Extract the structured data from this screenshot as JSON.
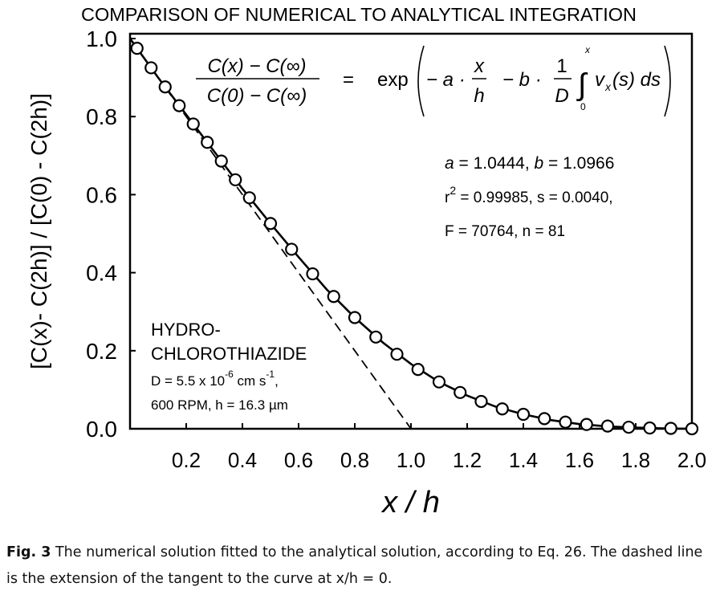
{
  "chart_data": {
    "type": "scatter",
    "title": "COMPARISON OF NUMERICAL TO ANALYTICAL INTEGRATION",
    "xlabel": "x / h",
    "ylabel": "[C(x)- C(2h)] / [C(0) - C(2h)]",
    "xlim": [
      0.0,
      2.0
    ],
    "ylim": [
      0.0,
      1.0
    ],
    "xticks": [
      "0.2",
      "0.4",
      "0.6",
      "0.8",
      "1.0",
      "1.2",
      "1.4",
      "1.6",
      "1.8",
      "2.0"
    ],
    "yticks": [
      "0.0",
      "0.2",
      "0.4",
      "0.6",
      "0.8",
      "1.0"
    ],
    "grid": false,
    "series": [
      {
        "style": "open-circles",
        "x": [
          0.025,
          0.075,
          0.125,
          0.175,
          0.225,
          0.275,
          0.325,
          0.375,
          0.425,
          0.5,
          0.575,
          0.65,
          0.725,
          0.8,
          0.875,
          0.95,
          1.025,
          1.1,
          1.175,
          1.25,
          1.325,
          1.4,
          1.475,
          1.55,
          1.625,
          1.7,
          1.775,
          1.85,
          1.925,
          2.0
        ],
        "y": [
          0.975,
          0.925,
          0.876,
          0.828,
          0.781,
          0.734,
          0.686,
          0.638,
          0.592,
          0.526,
          0.46,
          0.397,
          0.339,
          0.285,
          0.235,
          0.191,
          0.152,
          0.12,
          0.093,
          0.07,
          0.051,
          0.037,
          0.026,
          0.017,
          0.011,
          0.007,
          0.004,
          0.002,
          0.001,
          0.0
        ]
      },
      {
        "style": "solid-line",
        "x": [
          0.0,
          0.1,
          0.2,
          0.3,
          0.4,
          0.5,
          0.6,
          0.7,
          0.8,
          0.9,
          1.0,
          1.1,
          1.2,
          1.3,
          1.4,
          1.5,
          1.6,
          1.7,
          1.8,
          1.9,
          2.0
        ],
        "y": [
          1.0,
          0.9,
          0.805,
          0.71,
          0.615,
          0.526,
          0.44,
          0.357,
          0.285,
          0.221,
          0.166,
          0.12,
          0.085,
          0.057,
          0.037,
          0.022,
          0.012,
          0.006,
          0.003,
          0.001,
          0.0
        ]
      },
      {
        "style": "dashed-line",
        "x": [
          0.0,
          1.0
        ],
        "y": [
          1.0,
          0.0
        ]
      }
    ],
    "annotations": {
      "equation": {
        "lhs_num": "C(x) − C(∞)",
        "lhs_den": "C(0) − C(∞)",
        "eq": "=",
        "exp": "exp",
        "minus_a": "− a ·",
        "frac_x": "x",
        "frac_h": "h",
        "minus_b": "− b ·",
        "frac_1": "1",
        "frac_D": "D",
        "int_sign": "∫",
        "int_upper": "x",
        "int_lower": "0",
        "integrand": "v",
        "integrand_sub": "x",
        "integrand_tail": "(s) ds"
      },
      "fit_line1": "a = 1.0444, b = 1.0966",
      "fit_r": "r",
      "fit_r_sup": "2",
      "fit_line2_rest": " = 0.99985, s = 0.0040,",
      "fit_line3": "F = 70764, n = 81",
      "compound_line1": "HYDRO-",
      "compound_line2": "CHLOROTHIAZIDE",
      "d_prefix": "D = 5.5 x 10",
      "d_exp": "-6",
      "d_mid": " cm s",
      "d_exp2": "-1",
      "d_suffix": ",",
      "rpm_line": "600 RPM, h = 16.3 µm"
    }
  },
  "caption": {
    "label": "Fig. 3",
    "text": " The numerical solution fitted to the analytical solution, according to Eq. 26.   The dashed line is the extension of the tangent to the curve at x/h = 0."
  }
}
